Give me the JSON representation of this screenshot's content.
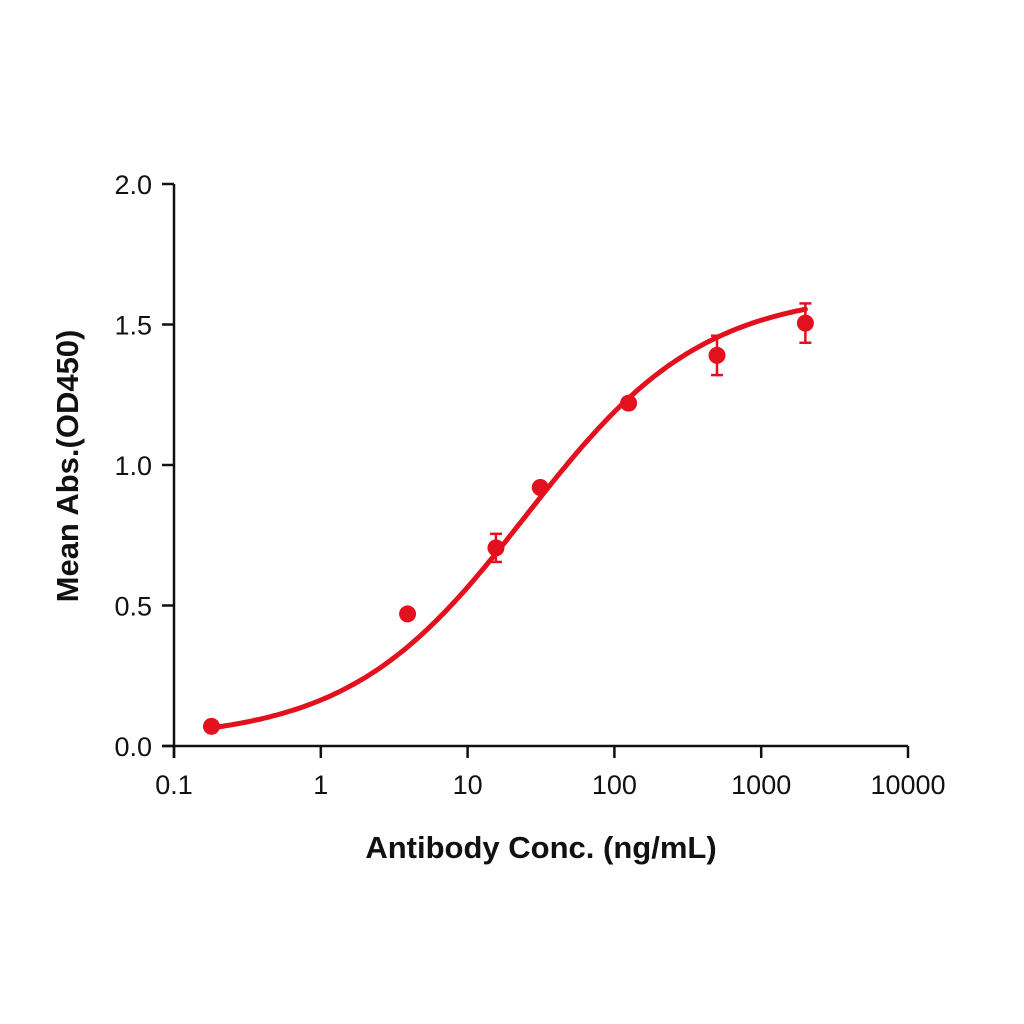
{
  "chart_data": {
    "type": "scatter",
    "title": "",
    "xlabel": "Antibody Conc. (ng/mL)",
    "ylabel": "Mean Abs.(OD450)",
    "xscale": "log",
    "xlim": [
      0.1,
      10000
    ],
    "ylim": [
      0.0,
      2.0
    ],
    "x_ticks": [
      "0.1",
      "1",
      "10",
      "100",
      "1000",
      "10000"
    ],
    "y_ticks": [
      "0.0",
      "0.5",
      "1.0",
      "1.5",
      "2.0"
    ],
    "grid": false,
    "legend": null,
    "series": [
      {
        "name": "Mean Abs.",
        "color": "#e3101d",
        "x": [
          0.18,
          3.9,
          15.6,
          31.25,
          125,
          500,
          2000
        ],
        "y": [
          0.07,
          0.47,
          0.705,
          0.92,
          1.22,
          1.39,
          1.505
        ],
        "error": [
          0.01,
          0.01,
          0.05,
          0.01,
          0.01,
          0.07,
          0.07
        ],
        "fit": "4PL sigmoid curve"
      }
    ]
  }
}
